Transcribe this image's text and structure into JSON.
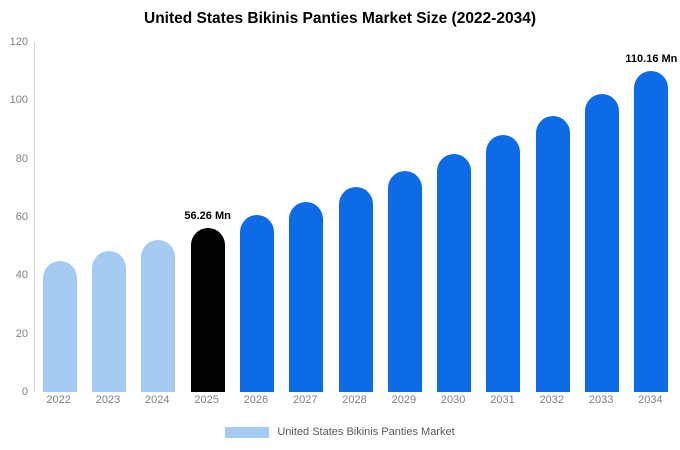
{
  "chart_data": {
    "type": "bar",
    "title": "United States Bikinis Panties Market Size (2022-2034)",
    "categories": [
      "2022",
      "2023",
      "2024",
      "2025",
      "2026",
      "2027",
      "2028",
      "2029",
      "2030",
      "2031",
      "2032",
      "2033",
      "2034"
    ],
    "values": [
      45.0,
      48.4,
      52.2,
      56.26,
      60.6,
      65.3,
      70.4,
      75.8,
      81.7,
      88.0,
      94.8,
      102.2,
      110.16
    ],
    "unit": "Mn",
    "xlabel": "",
    "ylabel": "",
    "ylim": [
      0,
      120
    ],
    "yticks": [
      0,
      20,
      40,
      60,
      80,
      100,
      120
    ],
    "grid": false,
    "legend_position": "bottom",
    "bar_colors": [
      "#a6cbf2",
      "#a6cbf2",
      "#a6cbf2",
      "#000000",
      "#0d6be8",
      "#0d6be8",
      "#0d6be8",
      "#0d6be8",
      "#0d6be8",
      "#0d6be8",
      "#0d6be8",
      "#0d6be8",
      "#0d6be8"
    ],
    "annotations": [
      {
        "category": "2025",
        "text": "56.26 Mn"
      },
      {
        "category": "2034",
        "text": "110.16 Mn"
      }
    ]
  },
  "legend": {
    "label": "United States Bikinis Panties Market",
    "swatch_color": "#a6cbf2"
  }
}
